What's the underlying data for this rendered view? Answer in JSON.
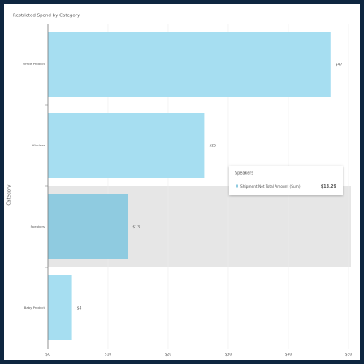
{
  "chart_data": {
    "type": "hbar",
    "title": "Restricted Spend by Category",
    "y_label": "Category",
    "categories": [
      "Office Product",
      "Wireless",
      "Speakers",
      "Baby Product"
    ],
    "series": [
      {
        "name": "Shipment Net Total Amount (Sum)",
        "color": "#a6def1",
        "values": [
          47,
          26,
          13.29,
          4
        ],
        "value_labels": [
          "$47",
          "$26",
          "$13",
          "$4"
        ]
      }
    ],
    "highlight_color": "#8fcbe0",
    "xlim": [
      0,
      50
    ],
    "xticks": [
      {
        "value": 0,
        "label": "$0"
      },
      {
        "value": 10,
        "label": "$10"
      },
      {
        "value": 20,
        "label": "$20"
      },
      {
        "value": 30,
        "label": "$30"
      },
      {
        "value": 40,
        "label": "$40"
      },
      {
        "value": 50,
        "label": "$50"
      }
    ],
    "grid": true,
    "tooltip_value": "$13.29"
  }
}
